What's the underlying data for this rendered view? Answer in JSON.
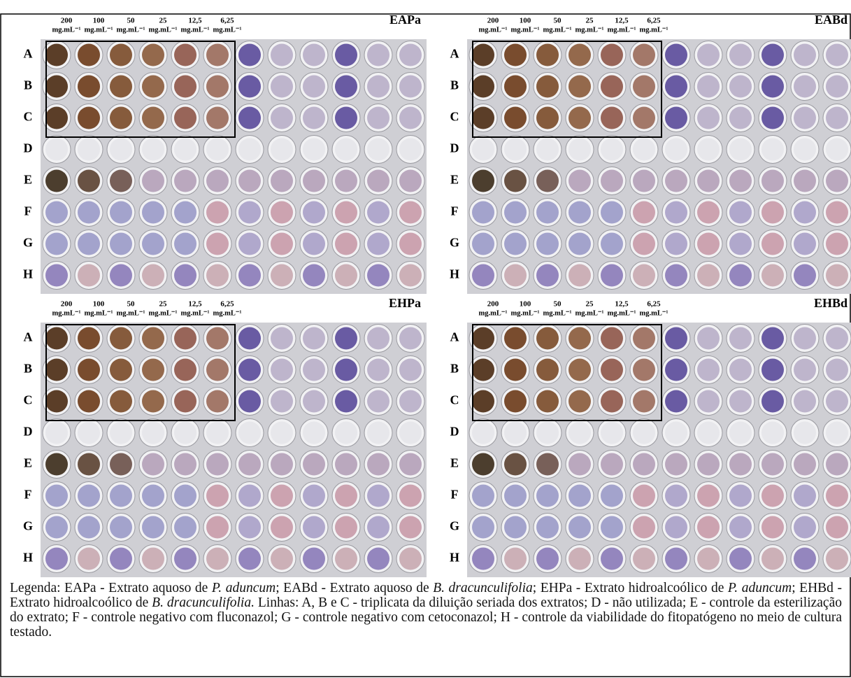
{
  "panels": [
    {
      "title": "EAPa",
      "concentrations": [
        "200",
        "100",
        "50",
        "25",
        "12,5",
        "6,25"
      ],
      "unit": "mg.mL⁻¹",
      "rows": [
        "A",
        "B",
        "C",
        "D",
        "E",
        "F",
        "G",
        "H"
      ]
    },
    {
      "title": "EABd",
      "concentrations": [
        "200",
        "100",
        "50",
        "25",
        "12,5",
        "6,25"
      ],
      "unit": "mg.mL⁻¹",
      "rows": [
        "A",
        "B",
        "C",
        "D",
        "E",
        "F",
        "G",
        "H"
      ]
    },
    {
      "title": "EHPa",
      "concentrations": [
        "200",
        "100",
        "50",
        "25",
        "12,5",
        "6,25"
      ],
      "unit": "mg.mL⁻¹",
      "rows": [
        "A",
        "B",
        "C",
        "D",
        "E",
        "F",
        "G",
        "H"
      ]
    },
    {
      "title": "EHBd",
      "concentrations": [
        "200",
        "100",
        "50",
        "25",
        "12,5",
        "6,25"
      ],
      "unit": "mg.mL⁻¹",
      "rows": [
        "A",
        "B",
        "C",
        "D",
        "E",
        "F",
        "G",
        "H"
      ]
    }
  ],
  "legend": [
    {
      "text": "Legenda: EAPa - Extrato aquoso de "
    },
    {
      "text": "P. aduncum",
      "italic": true
    },
    {
      "text": "; EABd - Extrato aquoso de "
    },
    {
      "text": "B. dracunculifolia",
      "italic": true
    },
    {
      "text": "; EHPa - Extrato hidroalcoólico de "
    },
    {
      "text": "P. aduncum",
      "italic": true
    },
    {
      "text": "; EHBd - Extrato hidroalcoólico de "
    },
    {
      "text": "B. dracunculifolia.",
      "italic": true
    },
    {
      "text": " Linhas: A, B e C - triplicata da diluição seriada dos extratos; D - não utilizada; E - controle da esterilização do extrato; F - controle negativo com fluconazol; G - controle negativo com cetoconazol; H - controle da viabilidade do fitopatógeno no meio de cultura testado."
    }
  ]
}
